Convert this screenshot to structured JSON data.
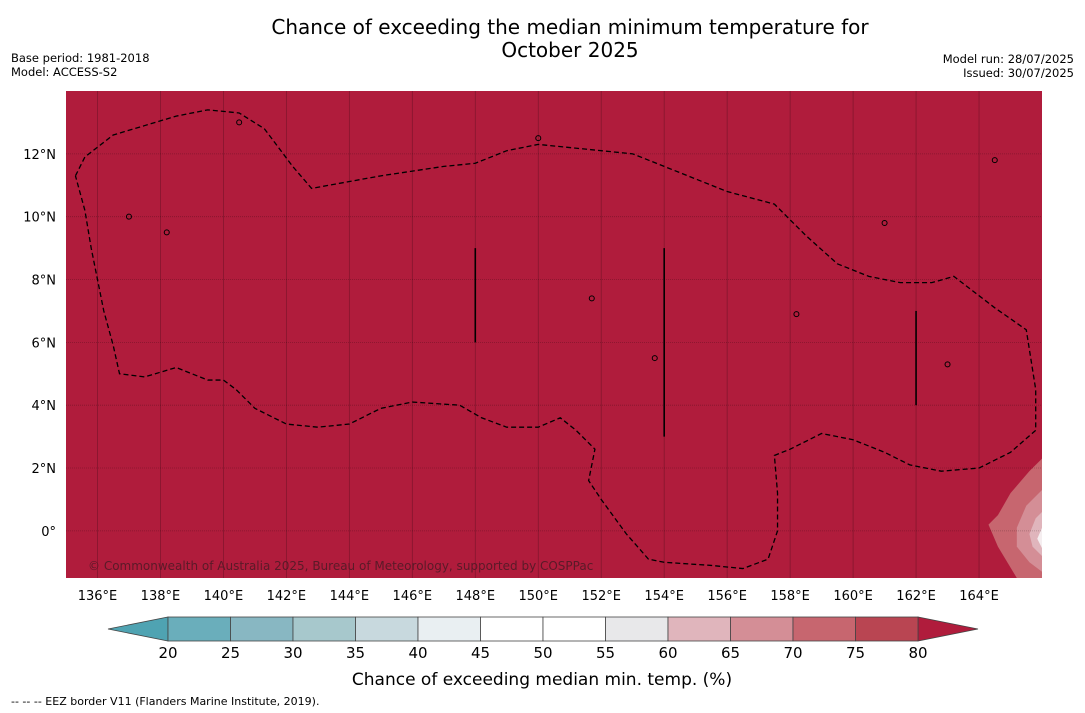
{
  "title_line1": "Chance of exceeding the median minimum temperature for",
  "title_line2": "October 2025",
  "base_period": "Base period: 1981-2018",
  "model": "Model: ACCESS-S2",
  "model_run": "Model run: 28/07/2025",
  "issued": "Issued: 30/07/2025",
  "copyright": "© Commonwealth of Australia 2025, Bureau of Meteorology, supported by COSPPac",
  "footnote": "--  --  -- EEZ border V11 (Flanders Marine Institute, 2019).",
  "colorbar": {
    "label": "Chance of exceeding median min. temp. (%)",
    "ticks": [
      "20",
      "25",
      "30",
      "35",
      "40",
      "45",
      "50",
      "55",
      "60",
      "65",
      "70",
      "75",
      "80"
    ],
    "bin_colors": [
      "#6aaebb",
      "#88b7c2",
      "#a7c8cc",
      "#c8d9de",
      "#e9eff2",
      "#ffffff",
      "#ffffff",
      "#e8e8ea",
      "#e0b5bc",
      "#d48e96",
      "#c7666f",
      "#b94552"
    ],
    "under_color": "#4fa3b2",
    "over_color": "#b01c3c"
  },
  "map": {
    "background_color": "#b01c3c",
    "lon_ticks": [
      136,
      138,
      140,
      142,
      144,
      146,
      148,
      150,
      152,
      154,
      156,
      158,
      160,
      162,
      164
    ],
    "lat_ticks": [
      0,
      2,
      4,
      6,
      8,
      10,
      12
    ],
    "lon_labels": [
      "136°E",
      "138°E",
      "140°E",
      "142°E",
      "144°E",
      "146°E",
      "148°E",
      "150°E",
      "152°E",
      "154°E",
      "156°E",
      "158°E",
      "160°E",
      "162°E",
      "164°E"
    ],
    "lat_labels": [
      "0°",
      "2°N",
      "4°N",
      "6°N",
      "8°N",
      "10°N",
      "12°N"
    ],
    "lon_range": [
      135.0,
      166.0
    ],
    "lat_range": [
      -1.5,
      14.0
    ],
    "eez_boundary": [
      [
        135.3,
        11.3
      ],
      [
        135.6,
        11.9
      ],
      [
        136.5,
        12.6
      ],
      [
        137.5,
        12.9
      ],
      [
        138.5,
        13.2
      ],
      [
        139.5,
        13.4
      ],
      [
        140.5,
        13.3
      ],
      [
        141.3,
        12.8
      ],
      [
        142.2,
        11.6
      ],
      [
        142.8,
        10.9
      ],
      [
        145.0,
        11.3
      ],
      [
        147.0,
        11.6
      ],
      [
        148.0,
        11.7
      ],
      [
        149.0,
        12.1
      ],
      [
        150.0,
        12.3
      ],
      [
        151.0,
        12.2
      ],
      [
        152.0,
        12.1
      ],
      [
        153.0,
        12.0
      ],
      [
        154.0,
        11.6
      ],
      [
        155.0,
        11.2
      ],
      [
        156.0,
        10.8
      ],
      [
        157.5,
        10.4
      ],
      [
        158.5,
        9.4
      ],
      [
        159.5,
        8.5
      ],
      [
        160.5,
        8.1
      ],
      [
        161.5,
        7.9
      ],
      [
        162.5,
        7.9
      ],
      [
        163.2,
        8.1
      ],
      [
        164.5,
        7.1
      ],
      [
        165.5,
        6.4
      ],
      [
        165.8,
        4.5
      ],
      [
        165.8,
        3.2
      ],
      [
        165.0,
        2.5
      ],
      [
        164.0,
        2.0
      ],
      [
        162.8,
        1.9
      ],
      [
        161.8,
        2.1
      ],
      [
        161.0,
        2.5
      ],
      [
        160.0,
        2.9
      ],
      [
        159.0,
        3.1
      ],
      [
        158.0,
        2.6
      ],
      [
        157.5,
        2.4
      ],
      [
        157.6,
        1.2
      ],
      [
        157.6,
        0.0
      ],
      [
        157.3,
        -0.9
      ],
      [
        156.5,
        -1.2
      ],
      [
        155.5,
        -1.1
      ],
      [
        154.0,
        -1.0
      ],
      [
        153.5,
        -0.9
      ],
      [
        152.8,
        -0.1
      ],
      [
        152.0,
        1.0
      ],
      [
        151.6,
        1.6
      ],
      [
        151.8,
        2.6
      ],
      [
        151.2,
        3.2
      ],
      [
        150.7,
        3.6
      ],
      [
        150.0,
        3.3
      ],
      [
        149.0,
        3.3
      ],
      [
        148.2,
        3.6
      ],
      [
        147.5,
        4.0
      ],
      [
        146.0,
        4.1
      ],
      [
        145.0,
        3.9
      ],
      [
        144.0,
        3.4
      ],
      [
        143.0,
        3.3
      ],
      [
        142.0,
        3.4
      ],
      [
        141.0,
        3.9
      ],
      [
        140.4,
        4.5
      ],
      [
        140.0,
        4.8
      ],
      [
        139.5,
        4.8
      ],
      [
        139.0,
        5.0
      ],
      [
        138.5,
        5.2
      ],
      [
        137.5,
        4.9
      ],
      [
        136.7,
        5.0
      ],
      [
        136.5,
        5.9
      ],
      [
        136.2,
        7.0
      ],
      [
        136.0,
        8.0
      ],
      [
        135.8,
        9.0
      ],
      [
        135.6,
        10.2
      ],
      [
        135.3,
        11.3
      ]
    ],
    "meridian_segments": [
      {
        "lon": 148.0,
        "lat_from": 6.0,
        "lat_to": 9.0
      },
      {
        "lon": 154.0,
        "lat_from": 3.0,
        "lat_to": 9.0
      },
      {
        "lon": 162.0,
        "lat_from": 4.0,
        "lat_to": 7.0
      }
    ],
    "islands": [
      [
        140.5,
        13.0
      ],
      [
        138.2,
        9.5
      ],
      [
        137.0,
        10.0
      ],
      [
        150.0,
        12.5
      ],
      [
        158.2,
        6.9
      ],
      [
        163.0,
        5.3
      ],
      [
        153.7,
        5.5
      ],
      [
        151.7,
        7.4
      ],
      [
        161.0,
        9.8
      ],
      [
        164.5,
        11.8
      ]
    ],
    "anomaly_patches": [
      {
        "label": "75",
        "color": "#c7666f",
        "ring": [
          [
            164.6,
            0.5
          ],
          [
            165.0,
            1.2
          ],
          [
            165.6,
            1.9
          ],
          [
            166.0,
            2.3
          ],
          [
            166.0,
            -1.5
          ],
          [
            165.2,
            -1.5
          ],
          [
            164.6,
            -0.5
          ],
          [
            164.3,
            0.2
          ]
        ]
      },
      {
        "label": "70",
        "color": "#d48e96",
        "ring": [
          [
            165.2,
            0.1
          ],
          [
            165.5,
            0.8
          ],
          [
            166.0,
            1.3
          ],
          [
            166.0,
            -1.3
          ],
          [
            165.6,
            -1.0
          ],
          [
            165.2,
            -0.5
          ]
        ]
      },
      {
        "label": "65",
        "color": "#e0b5bc",
        "ring": [
          [
            165.6,
            -0.1
          ],
          [
            165.8,
            0.4
          ],
          [
            166.0,
            0.6
          ],
          [
            166.0,
            -0.8
          ],
          [
            165.7,
            -0.5
          ]
        ]
      },
      {
        "label": "55",
        "color": "#f5eef0",
        "ring": [
          [
            165.85,
            -0.25
          ],
          [
            166.0,
            0.1
          ],
          [
            166.0,
            -0.55
          ]
        ]
      }
    ]
  }
}
